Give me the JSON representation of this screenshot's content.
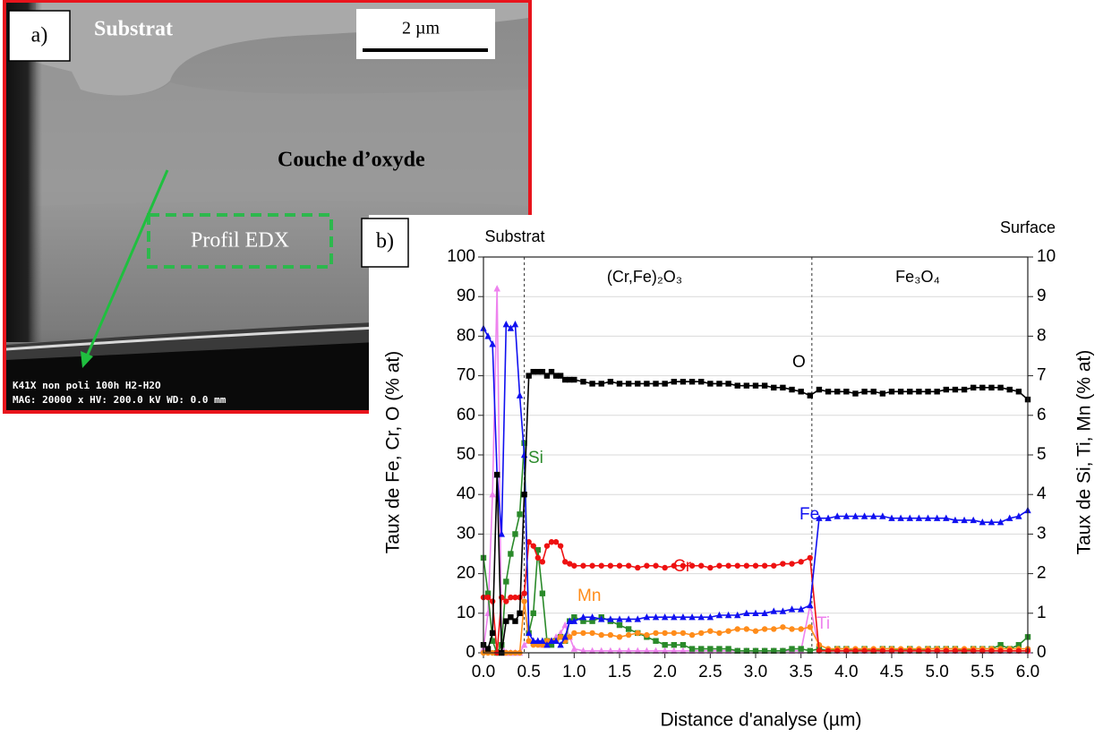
{
  "image_panel": {
    "label": "a)",
    "substrate": "Substrat",
    "scale": "2 µm",
    "layer": "Couche d’oxyde",
    "profile": "Profil EDX",
    "info": [
      "K41X non poli 100h H2-H2O",
      "MAG: 20000 x HV: 200.0 kV WD: 0.0 mm"
    ]
  },
  "chart_data": {
    "type": "line",
    "panel_label": "b)",
    "x_label": "Distance d'analyse (µm)",
    "y_label": "Taux de Fe, Cr, O (% at)",
    "y2_label": "Taux de Si, Ti, Mn (% at)",
    "annotations": [
      "Substrat",
      "Surface",
      "(Cr,Fe)₂O₃",
      "Fe₃O₄"
    ],
    "dividers": [
      0.45,
      3.62
    ],
    "xlim": [
      0,
      6
    ],
    "ylim": [
      0,
      100
    ],
    "y2lim": [
      0,
      10
    ],
    "xticks": [
      {
        "value": 0,
        "label": "0.0"
      },
      0.5,
      {
        "value": 1,
        "label": "1.0"
      },
      1.5,
      {
        "value": 2,
        "label": "2.0"
      },
      2.5,
      {
        "value": 3,
        "label": "3.0"
      },
      3.5,
      {
        "value": 4,
        "label": "4.0"
      },
      4.5,
      {
        "value": 5,
        "label": "5.0"
      },
      5.5,
      {
        "value": 6,
        "label": "6.0"
      }
    ],
    "yticks": [
      0,
      10,
      20,
      30,
      40,
      50,
      60,
      70,
      80,
      90,
      100
    ],
    "y2ticks": [
      0,
      1,
      2,
      3,
      4,
      5,
      6,
      7,
      8,
      9,
      10
    ],
    "grid": true,
    "x": [
      0,
      0.05,
      0.1,
      0.15,
      0.2,
      0.25,
      0.3,
      0.35,
      0.4,
      0.45,
      0.5,
      0.55,
      0.6,
      0.65,
      0.7,
      0.75,
      0.8,
      0.85,
      0.9,
      0.95,
      1,
      1.1,
      1.2,
      1.3,
      1.4,
      1.5,
      1.6,
      1.7,
      1.8,
      1.9,
      2,
      2.1,
      2.2,
      2.3,
      2.4,
      2.5,
      2.6,
      2.7,
      2.8,
      2.9,
      3,
      3.1,
      3.2,
      3.3,
      3.4,
      3.5,
      3.6,
      3.7,
      3.8,
      3.9,
      4,
      4.1,
      4.2,
      4.3,
      4.4,
      4.5,
      4.6,
      4.7,
      4.8,
      4.9,
      5,
      5.1,
      5.2,
      5.3,
      5.4,
      5.5,
      5.6,
      5.7,
      5.8,
      5.9,
      6
    ],
    "series": [
      {
        "name": "O",
        "color": "#000000",
        "marker": "square",
        "values": [
          2,
          1,
          5,
          45,
          0,
          8,
          9,
          8,
          10,
          40,
          70,
          71,
          71,
          71,
          70,
          71,
          70,
          70,
          69,
          69,
          69,
          68.5,
          68,
          68,
          68.5,
          68,
          68,
          68,
          68,
          68,
          68,
          68.5,
          68.5,
          68.5,
          68.5,
          68,
          68,
          68,
          67.5,
          67.5,
          67.5,
          67.5,
          67,
          67,
          66.5,
          66,
          65,
          66.5,
          66,
          66,
          66,
          65.5,
          66,
          66,
          65.5,
          66,
          66,
          66,
          66,
          66,
          66,
          66.5,
          66.5,
          66.5,
          67,
          67,
          67,
          67,
          66.5,
          66,
          64
        ]
      },
      {
        "name": "Fe",
        "color": "#1010f0",
        "marker": "triangle",
        "values": [
          82,
          80,
          78,
          45,
          30,
          83,
          82,
          83,
          65,
          50,
          5,
          3,
          3,
          3,
          2,
          3,
          3,
          2,
          4,
          8,
          8,
          9,
          9,
          8.5,
          8.5,
          8.5,
          8.5,
          8.5,
          9,
          9,
          9,
          9,
          9,
          9,
          9,
          9,
          9.5,
          9.5,
          9.5,
          10,
          10,
          10,
          10.5,
          10.5,
          11,
          11,
          12,
          34,
          34,
          34.5,
          34.5,
          34.5,
          34.5,
          34.5,
          34.5,
          34,
          34,
          34,
          34,
          34,
          34,
          34,
          33.5,
          33.5,
          33.5,
          33,
          33,
          33,
          34,
          34.5,
          36
        ]
      },
      {
        "name": "Cr",
        "color": "#ee1111",
        "marker": "circle",
        "values": [
          14,
          14,
          13,
          0,
          14,
          13,
          14,
          14,
          14,
          15,
          28,
          27,
          24,
          23,
          27,
          28,
          28,
          27,
          23,
          22.5,
          22,
          22,
          22,
          22,
          22,
          22,
          22,
          21.5,
          22,
          22,
          21.5,
          22,
          22,
          22,
          22,
          21.5,
          22,
          22,
          22,
          22,
          22,
          22,
          22,
          22.5,
          22.5,
          23,
          24,
          0.5,
          0.5,
          0.5,
          0.5,
          0.5,
          0.5,
          0.5,
          0.5,
          0.5,
          0.5,
          0.5,
          0.5,
          0.5,
          0.5,
          0.5,
          0.5,
          0.5,
          0.5,
          0.5,
          0.5,
          0.5,
          0.5,
          0.5,
          0.5
        ]
      },
      {
        "name": "Mn",
        "color": "#ff8c1a",
        "marker": "circle",
        "axis": "y2",
        "values": [
          0,
          0,
          0,
          0,
          0,
          0,
          0,
          0,
          0,
          1.3,
          0.3,
          0.2,
          0.2,
          0.2,
          0.3,
          0.3,
          0.3,
          0.4,
          0.3,
          0.4,
          0.5,
          0.5,
          0.5,
          0.45,
          0.45,
          0.4,
          0.45,
          0.5,
          0.45,
          0.5,
          0.5,
          0.5,
          0.5,
          0.45,
          0.5,
          0.55,
          0.5,
          0.55,
          0.6,
          0.6,
          0.55,
          0.6,
          0.6,
          0.65,
          0.6,
          0.6,
          0.65,
          0.2,
          0.1,
          0.1,
          0.1,
          0.1,
          0.1,
          0.1,
          0.1,
          0.1,
          0.1,
          0.1,
          0.1,
          0.1,
          0.1,
          0.1,
          0.1,
          0.1,
          0.1,
          0.1,
          0.1,
          0.1,
          0.1,
          0.1,
          0.1
        ]
      },
      {
        "name": "Si",
        "color": "#2a8a2a",
        "marker": "square",
        "axis": "y2",
        "values": [
          2.4,
          1.5,
          0.3,
          0,
          0.2,
          1.8,
          2.5,
          3,
          3.5,
          5.3,
          0.5,
          1,
          2.6,
          1.5,
          0.3,
          0.2,
          0.3,
          0.4,
          0.3,
          0.8,
          0.9,
          0.8,
          0.8,
          0.9,
          0.8,
          0.7,
          0.6,
          0.5,
          0.4,
          0.3,
          0.2,
          0.2,
          0.2,
          0.1,
          0.1,
          0.1,
          0.1,
          0.1,
          0.05,
          0.05,
          0.05,
          0.05,
          0.05,
          0.05,
          0.1,
          0.1,
          0.05,
          0.1,
          0.05,
          0.1,
          0.1,
          0.05,
          0.1,
          0.05,
          0.1,
          0.1,
          0.05,
          0.1,
          0.05,
          0.1,
          0.1,
          0.1,
          0.1,
          0.05,
          0.1,
          0.1,
          0.1,
          0.2,
          0.1,
          0.2,
          0.4
        ]
      },
      {
        "name": "Ti",
        "color": "#ee82ee",
        "marker": "triangle",
        "axis": "y2",
        "values": [
          0.1,
          1,
          4,
          9.2,
          0.2,
          0,
          0,
          0,
          0,
          0.2,
          0.3,
          0.3,
          0.3,
          0.2,
          0.2,
          0.3,
          0.4,
          0.5,
          0.7,
          0.4,
          0.1,
          0.05,
          0.05,
          0.05,
          0.05,
          0.05,
          0.05,
          0.05,
          0.05,
          0.05,
          0.05,
          0.05,
          0.05,
          0.05,
          0.05,
          0.05,
          0.05,
          0.05,
          0.05,
          0.05,
          0.05,
          0.05,
          0.05,
          0.05,
          0.05,
          0.05,
          1.2,
          0.1,
          0.05,
          0.05,
          0.05,
          0.05,
          0.05,
          0.05,
          0.05,
          0.05,
          0.05,
          0.05,
          0.05,
          0.05,
          0.05,
          0.05,
          0.05,
          0.05,
          0.05,
          0.05,
          0.05,
          0.05,
          0.05,
          0.05,
          0.05
        ]
      }
    ]
  }
}
